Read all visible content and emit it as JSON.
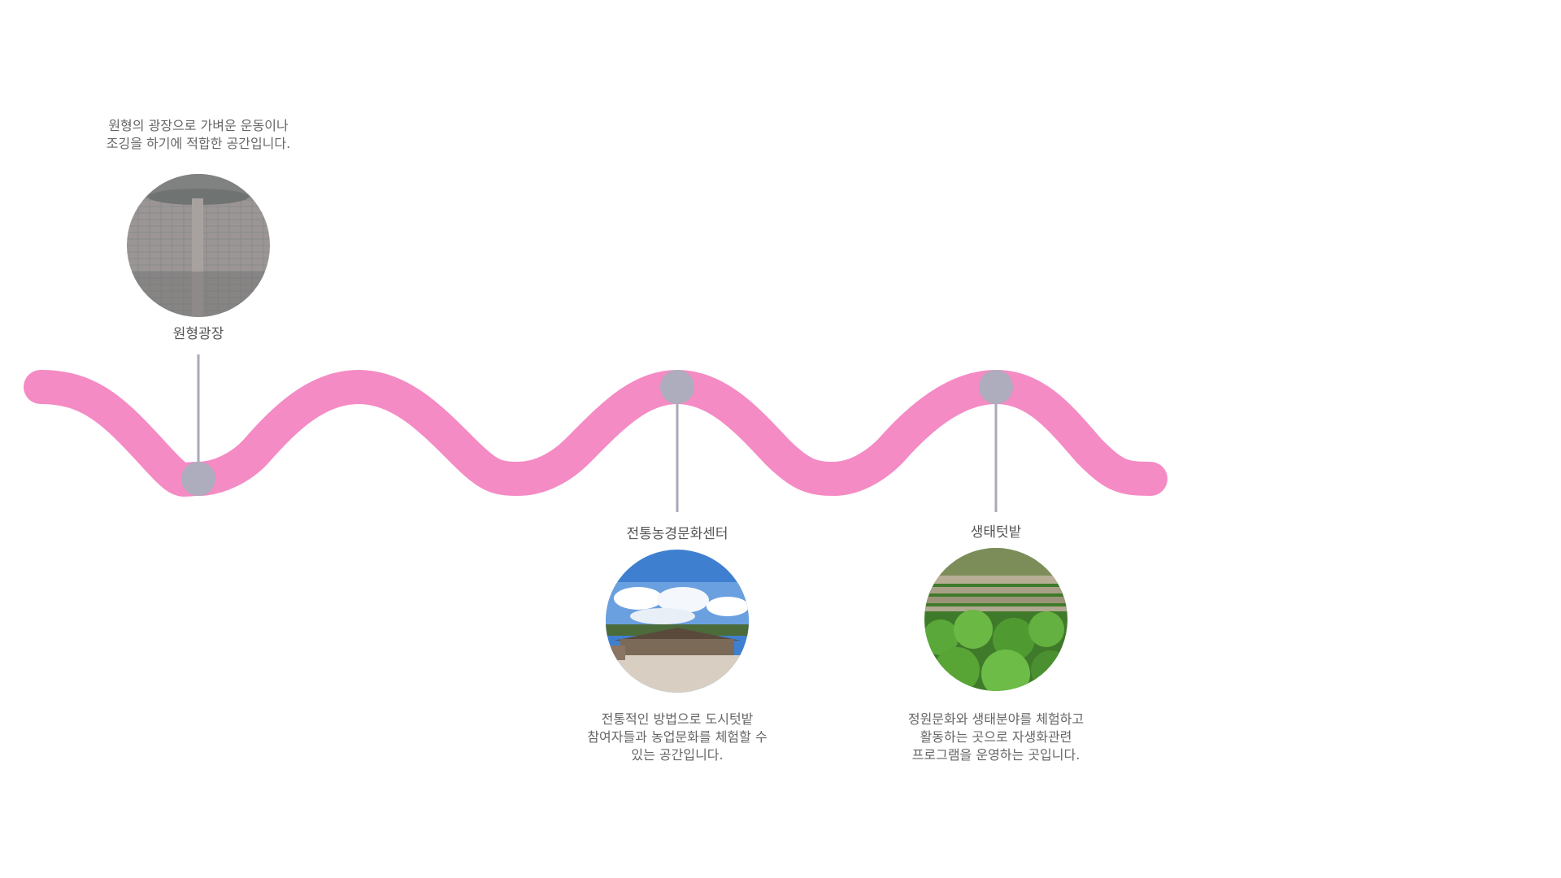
{
  "colors": {
    "wave": "#f48bc4",
    "marker": "#adadbd",
    "stem": "#a9a9b8",
    "label_text": "#555555",
    "desc_text": "#666666"
  },
  "points": [
    {
      "id": "circular-plaza",
      "title": "원형광장",
      "description": [
        "원형의 광장으로 가벼운 운동이나",
        "조깅을 하기에 적합한 공간입니다."
      ],
      "photo_icon": "paving-stone-plaza-photo"
    },
    {
      "id": "traditional-farming-center",
      "title": "전통농경문화센터",
      "description": [
        "전통적인 방법으로 도시텃밭",
        "참여자들과 농업문화를 체험할 수",
        "있는 공간입니다."
      ],
      "photo_icon": "traditional-building-sky-photo"
    },
    {
      "id": "eco-garden",
      "title": "생태텃밭",
      "description": [
        "정원문화와 생태분야를 체험하고",
        "활동하는 곳으로 자생화관련",
        "프로그램을 운영하는 곳입니다."
      ],
      "photo_icon": "vegetable-garden-photo"
    }
  ]
}
